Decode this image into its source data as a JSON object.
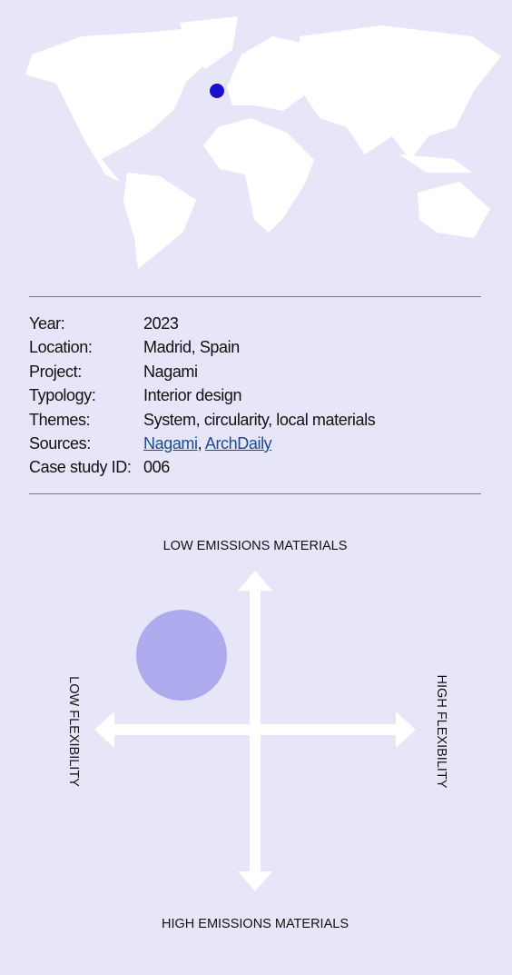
{
  "details": {
    "rows": [
      {
        "label": "Year:",
        "value": "2023"
      },
      {
        "label": "Location:",
        "value": "Madrid, Spain"
      },
      {
        "label": "Project:",
        "value": "Nagami"
      },
      {
        "label": "Typology:",
        "value": "Interior design"
      },
      {
        "label": "Themes:",
        "value": "System, circularity, local materials"
      },
      {
        "label": "Sources:",
        "links": [
          "Nagami",
          "ArchDaily"
        ],
        "separator": ","
      },
      {
        "label": "Case study ID:",
        "value": "006"
      }
    ]
  },
  "matrix": {
    "top": "LOW EMISSIONS MATERIALS",
    "bottom": "HIGH EMISSIONS MATERIALS",
    "left": "LOW FLEXIBILITY",
    "right": "HIGH FLEXIBILITY"
  }
}
